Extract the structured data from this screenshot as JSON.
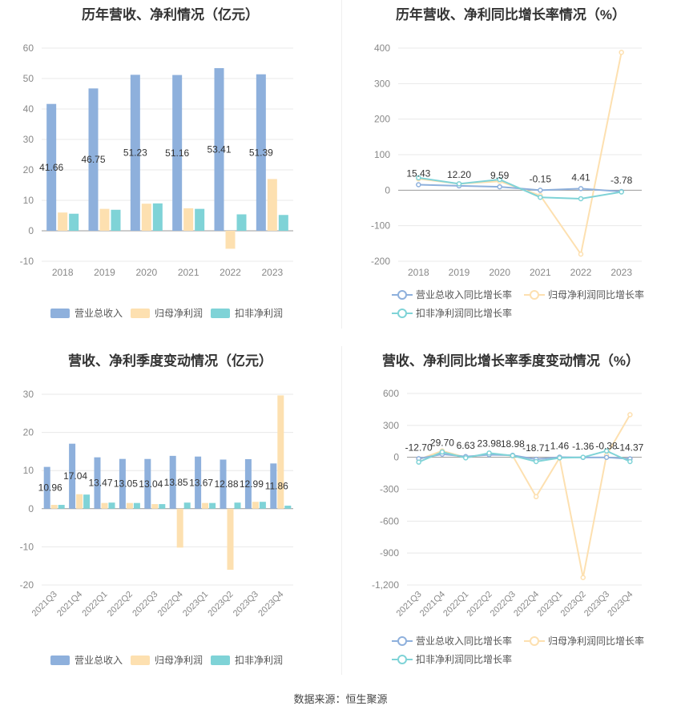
{
  "source": {
    "label": "数据来源：恒生聚源"
  },
  "chart_data": [
    {
      "type": "bar",
      "title": "历年营收、净利情况（亿元）",
      "categories": [
        "2018",
        "2019",
        "2020",
        "2021",
        "2022",
        "2023"
      ],
      "series": [
        {
          "name": "营业总收入",
          "color": "#8eb0dc",
          "values": [
            41.66,
            46.75,
            51.23,
            51.16,
            53.41,
            51.39
          ]
        },
        {
          "name": "归母净利润",
          "color": "#fde0b0",
          "values": [
            6.0,
            7.2,
            8.9,
            7.4,
            -5.9,
            17.0
          ]
        },
        {
          "name": "扣非净利润",
          "color": "#7fd3d7",
          "values": [
            5.6,
            6.9,
            9.0,
            7.2,
            5.4,
            5.2
          ]
        }
      ],
      "data_labels": [
        "41.66",
        "46.75",
        "51.23",
        "51.16",
        "53.41",
        "51.39"
      ],
      "yticks": [
        "60",
        "50",
        "40",
        "30",
        "20",
        "10",
        "0",
        "-10"
      ],
      "ylim": [
        -10,
        60
      ],
      "legend": "bottom"
    },
    {
      "type": "line",
      "title": "历年营收、净利同比增长率情况（%）",
      "categories": [
        "2018",
        "2019",
        "2020",
        "2021",
        "2022",
        "2023"
      ],
      "series": [
        {
          "name": "营业总收入同比增长率",
          "color": "#8eb0dc",
          "values": [
            15.43,
            12.2,
            9.59,
            -0.15,
            4.41,
            -3.78
          ]
        },
        {
          "name": "归母净利润同比增长率",
          "color": "#fde0b0",
          "values": [
            32,
            18,
            25,
            -15,
            -180,
            388
          ]
        },
        {
          "name": "扣非净利润同比增长率",
          "color": "#7fd3d7",
          "values": [
            35,
            18,
            30,
            -20,
            -24,
            -5
          ]
        }
      ],
      "data_labels": [
        "15.43",
        "12.20",
        "9.59",
        "-0.15",
        "4.41",
        "-3.78"
      ],
      "yticks": [
        "400",
        "300",
        "200",
        "100",
        "0",
        "-100",
        "-200"
      ],
      "ylim": [
        -200,
        400
      ],
      "legend": "bottom"
    },
    {
      "type": "bar",
      "title": "营收、净利季度变动情况（亿元）",
      "categories": [
        "2021Q3",
        "2021Q4",
        "2022Q1",
        "2022Q2",
        "2022Q3",
        "2022Q4",
        "2023Q1",
        "2023Q2",
        "2023Q3",
        "2023Q4"
      ],
      "series": [
        {
          "name": "营业总收入",
          "color": "#8eb0dc",
          "values": [
            10.96,
            17.04,
            13.47,
            13.05,
            13.04,
            13.85,
            13.67,
            12.88,
            12.99,
            11.86
          ]
        },
        {
          "name": "归母净利润",
          "color": "#fde0b0",
          "values": [
            1.0,
            3.8,
            1.5,
            1.5,
            1.2,
            -10.2,
            1.5,
            -16.0,
            1.8,
            29.7
          ]
        },
        {
          "name": "扣非净利润",
          "color": "#7fd3d7",
          "values": [
            1.0,
            3.7,
            1.6,
            1.5,
            1.2,
            1.6,
            1.5,
            1.6,
            1.8,
            0.8
          ]
        }
      ],
      "data_labels": [
        "10.96",
        "17.04",
        "13.47",
        "13.05",
        "13.04",
        "13.85",
        "13.67",
        "12.88",
        "12.99",
        "11.86"
      ],
      "yticks": [
        "30",
        "20",
        "10",
        "0",
        "-10",
        "-20"
      ],
      "ylim": [
        -20,
        30
      ],
      "legend": "bottom"
    },
    {
      "type": "line",
      "title": "营收、净利同比增长率季度变动情况（%）",
      "categories": [
        "2021Q3",
        "2021Q4",
        "2022Q1",
        "2022Q2",
        "2022Q3",
        "2022Q4",
        "2023Q1",
        "2023Q2",
        "2023Q3",
        "2023Q4"
      ],
      "series": [
        {
          "name": "营业总收入同比增长率",
          "color": "#8eb0dc",
          "values": [
            -12.7,
            29.7,
            6.63,
            23.98,
            18.98,
            -18.71,
            1.46,
            -1.36,
            -0.38,
            -14.37
          ]
        },
        {
          "name": "归母净利润同比增长率",
          "color": "#fde0b0",
          "values": [
            -20,
            60,
            0,
            30,
            15,
            -370,
            -5,
            -1130,
            20,
            400
          ]
        },
        {
          "name": "扣非净利润同比增长率",
          "color": "#7fd3d7",
          "values": [
            -45,
            50,
            -5,
            40,
            15,
            -40,
            -5,
            0,
            60,
            -40
          ]
        }
      ],
      "data_labels": [
        "-12.70",
        "29.70",
        "6.63",
        "23.98",
        "18.98",
        "-18.71",
        "1.46",
        "-1.36",
        "-0.38",
        "-14.37"
      ],
      "yticks": [
        "600",
        "300",
        "0",
        "-300",
        "-600",
        "-900",
        "-1,200"
      ],
      "ylim": [
        -1200,
        600
      ],
      "legend": "bottom"
    }
  ]
}
